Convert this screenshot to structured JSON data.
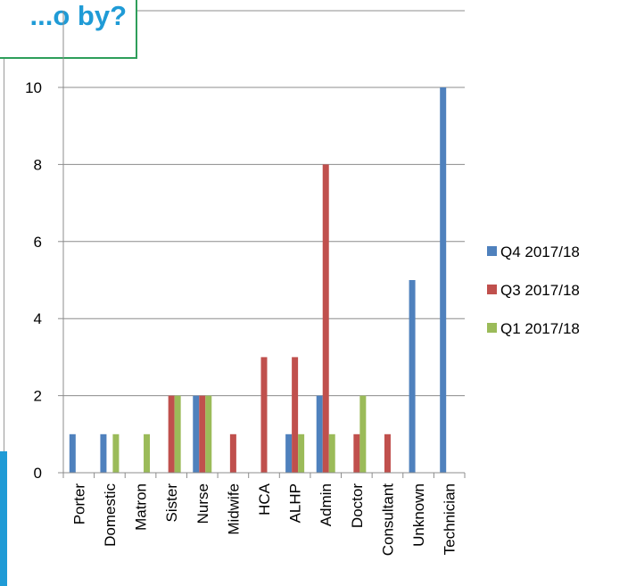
{
  "title": "...o by?",
  "chart_data": {
    "type": "bar",
    "categories": [
      "Porter",
      "Domestic",
      "Matron",
      "Sister",
      "Nurse",
      "Midwife",
      "HCA",
      "ALHP",
      "Admin",
      "Doctor",
      "Consultant",
      "Unknown",
      "Technician"
    ],
    "series": [
      {
        "name": "Q4 2017/18",
        "color": "#4f81bd",
        "values": [
          1,
          1,
          0,
          0,
          2,
          0,
          0,
          1,
          2,
          0,
          0,
          5,
          10
        ]
      },
      {
        "name": "Q3 2017/18",
        "color": "#c0504d",
        "values": [
          0,
          0,
          0,
          2,
          2,
          1,
          3,
          3,
          8,
          1,
          1,
          0,
          0
        ]
      },
      {
        "name": "Q1 2017/18",
        "color": "#9bbb59",
        "values": [
          0,
          1,
          1,
          2,
          2,
          0,
          0,
          1,
          1,
          2,
          0,
          0,
          0
        ]
      }
    ],
    "yticks": [
      0,
      2,
      4,
      6,
      8,
      10
    ],
    "ylim": [
      0,
      10
    ],
    "grid": true,
    "legend_position": "right"
  }
}
